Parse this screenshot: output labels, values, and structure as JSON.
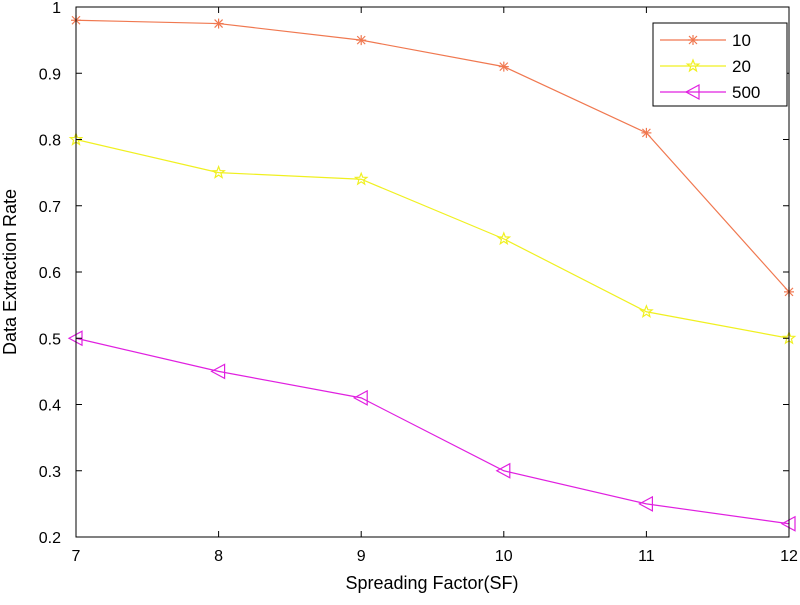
{
  "chart_data": {
    "type": "line",
    "title": "",
    "xlabel": "Spreading Factor(SF)",
    "ylabel": "Data Extraction Rate",
    "xlim": [
      7,
      12
    ],
    "ylim": [
      0.2,
      1
    ],
    "xticks": [
      "7",
      "8",
      "9",
      "10",
      "11",
      "12"
    ],
    "yticks": [
      "0.2",
      "0.3",
      "0.4",
      "0.5",
      "0.6",
      "0.7",
      "0.8",
      "0.9",
      "1"
    ],
    "grid": false,
    "legend_position": "top-right",
    "x": [
      7,
      8,
      9,
      10,
      11,
      12
    ],
    "series": [
      {
        "name": "10",
        "color": "#f07850",
        "marker": "asterisk",
        "values": [
          0.98,
          0.975,
          0.95,
          0.91,
          0.81,
          0.57
        ]
      },
      {
        "name": "20",
        "color": "#f0f020",
        "marker": "star",
        "values": [
          0.8,
          0.75,
          0.74,
          0.65,
          0.54,
          0.5
        ]
      },
      {
        "name": "500",
        "color": "#e020e0",
        "marker": "triangle-left",
        "values": [
          0.5,
          0.45,
          0.41,
          0.3,
          0.25,
          0.22
        ]
      }
    ]
  }
}
